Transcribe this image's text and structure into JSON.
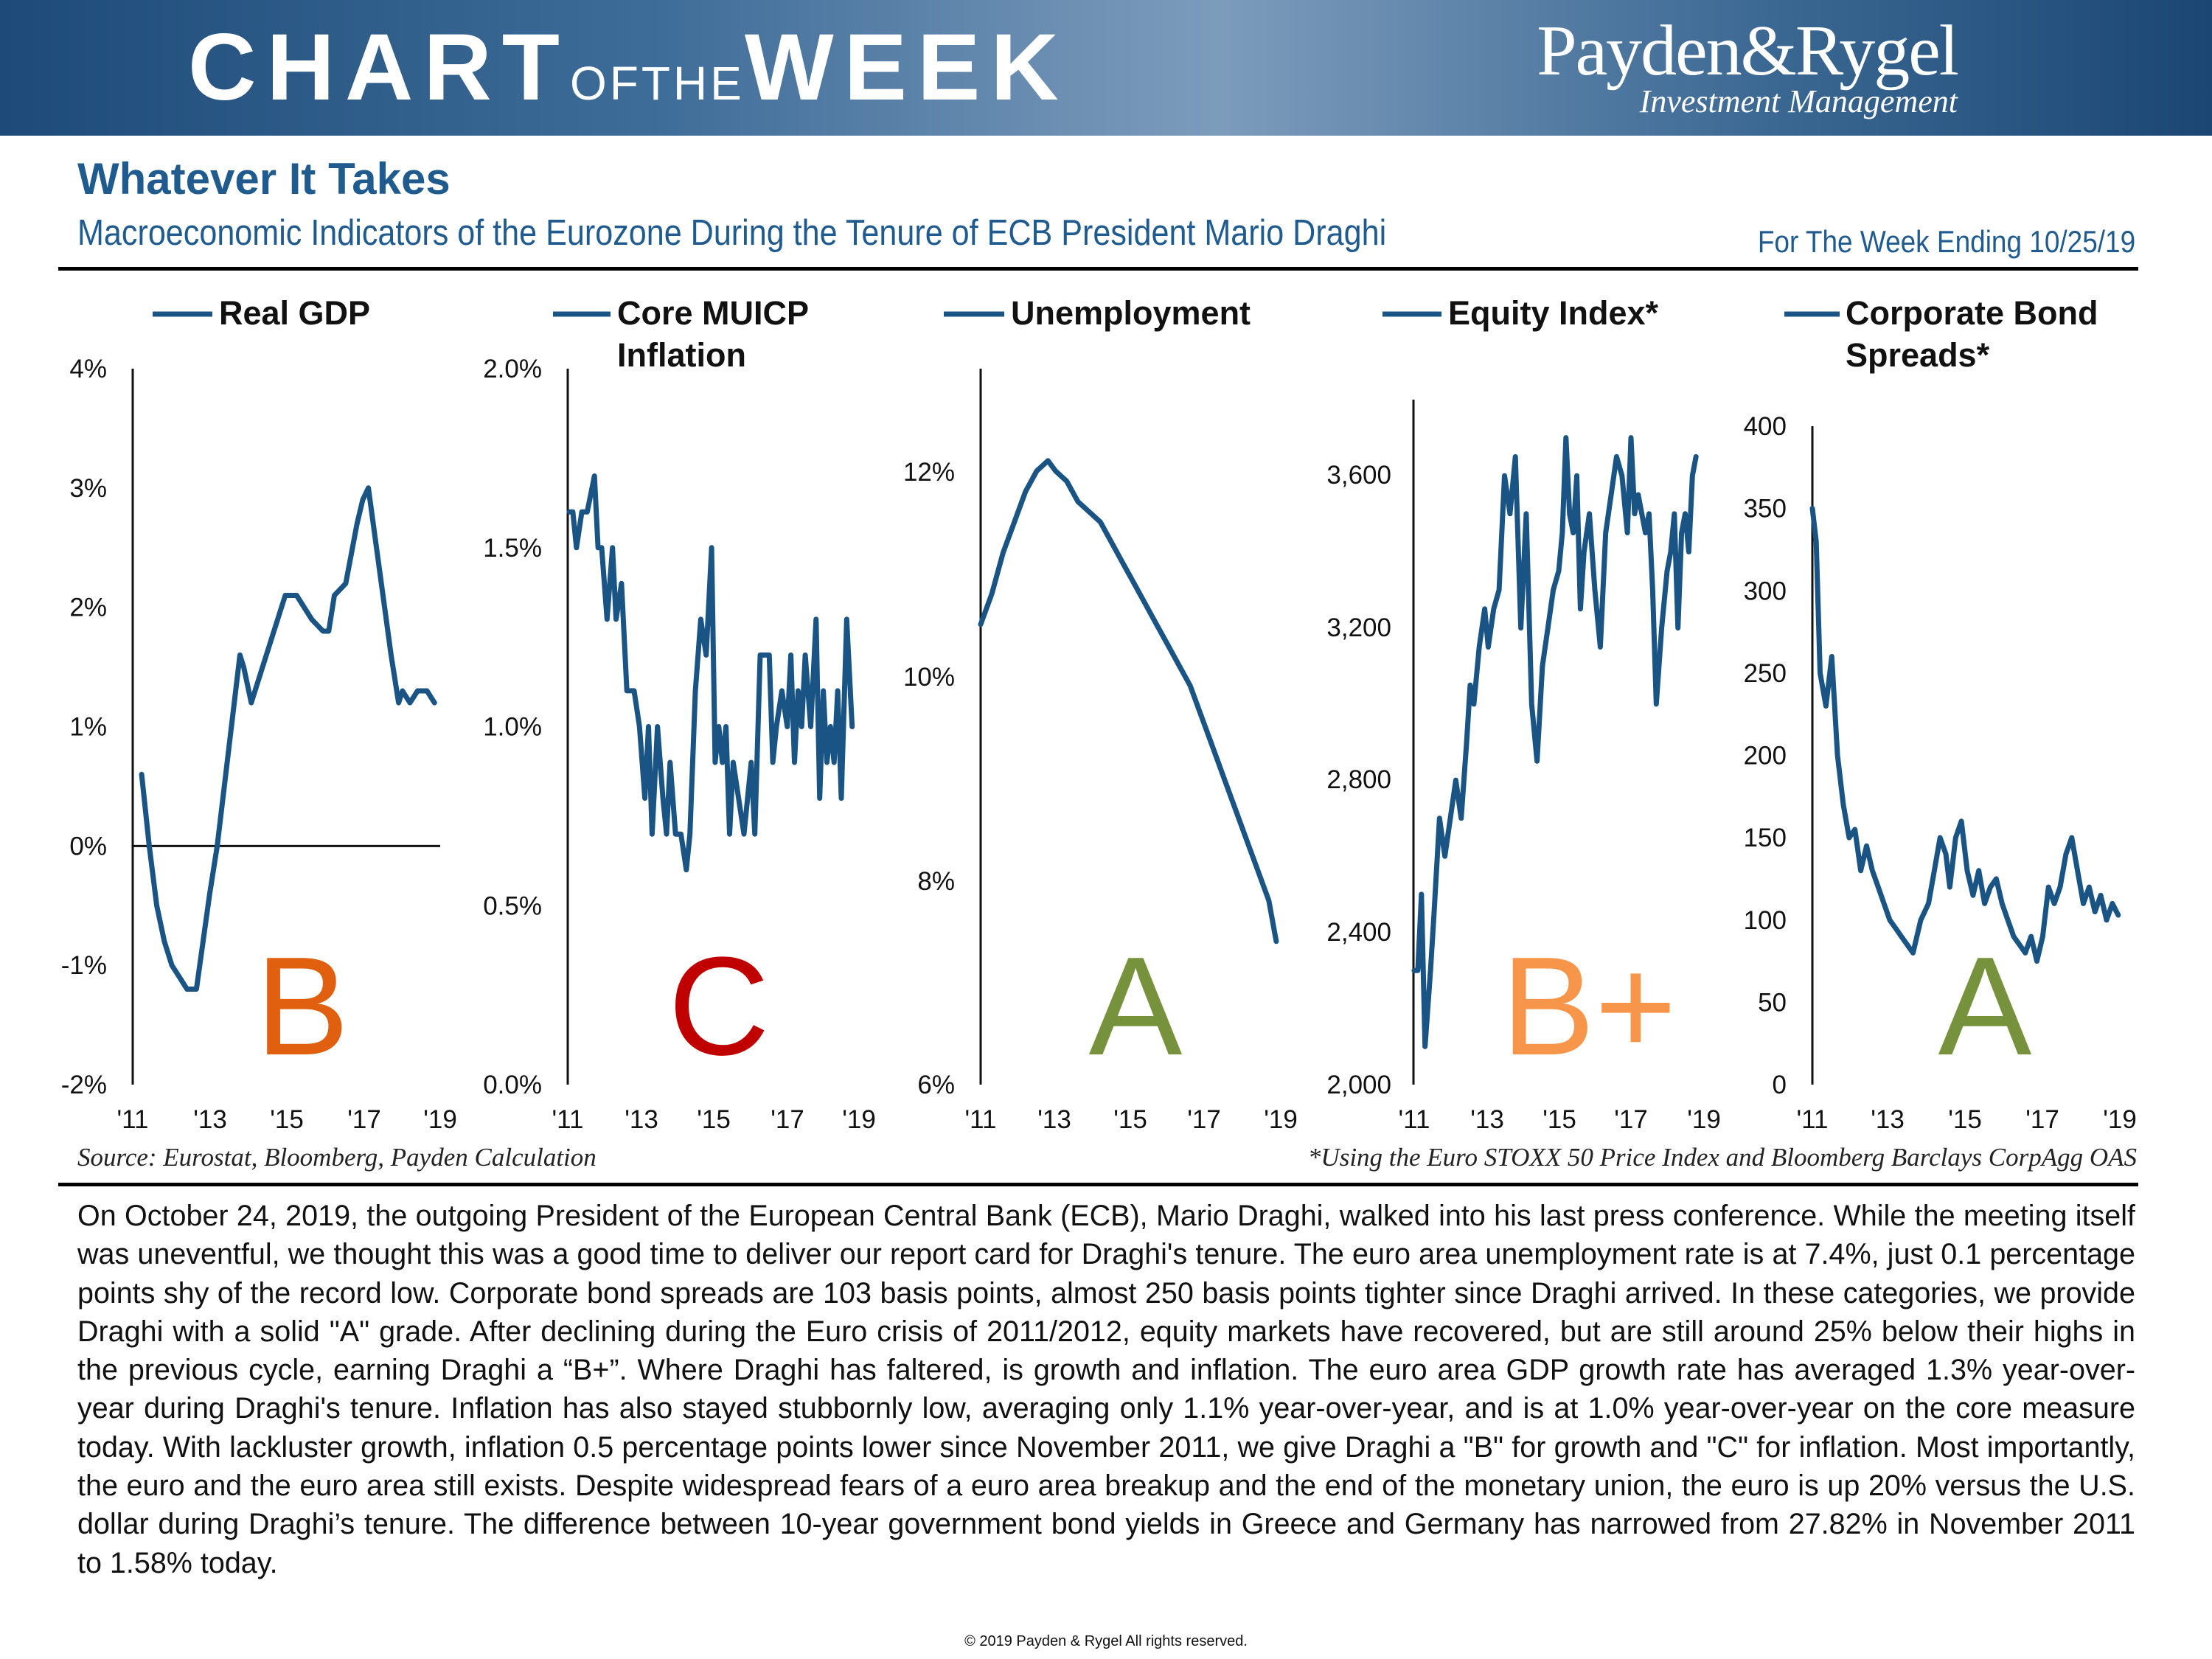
{
  "header": {
    "chart": "CHART",
    "of_the": "OFTHE",
    "week": "WEEK",
    "logo_name": "Payden&Rygel",
    "logo_tagline": "Investment Management"
  },
  "title": "Whatever It Takes",
  "subtitle": "Macroeconomic Indicators of the Eurozone During the Tenure of ECB President Mario Draghi",
  "week_ending": "For The Week Ending 10/25/19",
  "colors": {
    "line": "#1a5485",
    "brand": "#1f5b8f",
    "grade_B": "#e06010",
    "grade_C": "#c00000",
    "grade_A": "#76923c",
    "grade_Bplus": "#f7964a"
  },
  "chart_data": [
    {
      "type": "line",
      "legend": [
        "Real GDP"
      ],
      "grade": "B",
      "ylim": [
        -2,
        4
      ],
      "yticks": [
        "4%",
        "3%",
        "2%",
        "1%",
        "0%",
        "-1%",
        "-2%"
      ],
      "xticks": [
        "'11",
        "'13",
        "'15",
        "'17",
        "'19"
      ],
      "xlim": [
        2011,
        2019
      ],
      "zero_line": true,
      "x": [
        2011.1,
        2011.3,
        2011.5,
        2011.7,
        2011.9,
        2012.1,
        2012.3,
        2012.55,
        2012.9,
        2013.1,
        2013.4,
        2013.7,
        2013.8,
        2014.0,
        2014.3,
        2014.6,
        2014.9,
        2015.0,
        2015.2,
        2015.6,
        2015.9,
        2016.05,
        2016.2,
        2016.5,
        2016.8,
        2016.95,
        2017.1,
        2017.4,
        2017.7,
        2017.9,
        2018.0,
        2018.2,
        2018.4,
        2018.65,
        2018.85
      ],
      "y": [
        0.6,
        0.0,
        -0.5,
        -0.8,
        -1.0,
        -1.1,
        -1.2,
        -1.2,
        -0.4,
        0.0,
        0.8,
        1.6,
        1.5,
        1.2,
        1.5,
        1.8,
        2.1,
        2.1,
        2.1,
        1.9,
        1.8,
        1.8,
        2.1,
        2.2,
        2.7,
        2.9,
        3.0,
        2.3,
        1.6,
        1.2,
        1.3,
        1.2,
        1.3,
        1.3,
        1.2
      ]
    },
    {
      "type": "line",
      "legend": [
        "Core MUICP",
        "Inflation"
      ],
      "grade": "C",
      "ylim": [
        0,
        2
      ],
      "yticks": [
        "2.0%",
        "1.5%",
        "1.0%",
        "0.5%",
        "0.0%"
      ],
      "xticks": [
        "'11",
        "'13",
        "'15",
        "'17",
        "'19"
      ],
      "xlim": [
        2011,
        2019
      ],
      "x": [
        2011.0,
        2011.1,
        2011.2,
        2011.35,
        2011.5,
        2011.7,
        2011.8,
        2011.9,
        2012.05,
        2012.2,
        2012.3,
        2012.45,
        2012.6,
        2012.8,
        2012.95,
        2013.1,
        2013.2,
        2013.3,
        2013.45,
        2013.6,
        2013.7,
        2013.8,
        2013.95,
        2014.1,
        2014.25,
        2014.35,
        2014.5,
        2014.65,
        2014.8,
        2014.95,
        2015.05,
        2015.15,
        2015.25,
        2015.35,
        2015.45,
        2015.55,
        2015.7,
        2015.85,
        2015.95,
        2016.05,
        2016.15,
        2016.3,
        2016.45,
        2016.55,
        2016.65,
        2016.75,
        2016.9,
        2017.05,
        2017.15,
        2017.25,
        2017.35,
        2017.45,
        2017.55,
        2017.7,
        2017.85,
        2017.95,
        2018.05,
        2018.15,
        2018.25,
        2018.35,
        2018.45,
        2018.55,
        2018.7,
        2018.85
      ],
      "y": [
        1.6,
        1.6,
        1.5,
        1.6,
        1.6,
        1.7,
        1.5,
        1.5,
        1.3,
        1.5,
        1.3,
        1.4,
        1.1,
        1.1,
        1.0,
        0.8,
        1.0,
        0.7,
        1.0,
        0.8,
        0.7,
        0.9,
        0.7,
        0.7,
        0.6,
        0.7,
        1.1,
        1.3,
        1.2,
        1.5,
        0.9,
        1.0,
        0.9,
        1.0,
        0.7,
        0.9,
        0.8,
        0.7,
        0.8,
        0.9,
        0.7,
        1.2,
        1.2,
        1.2,
        0.9,
        1.0,
        1.1,
        1.0,
        1.2,
        0.9,
        1.1,
        1.0,
        1.2,
        1.0,
        1.3,
        0.8,
        1.1,
        0.9,
        1.0,
        0.9,
        1.1,
        0.8,
        1.3,
        1.0
      ]
    },
    {
      "type": "line",
      "legend": [
        "Unemployment"
      ],
      "grade": "A",
      "ylim": [
        6,
        13
      ],
      "yticks": [
        "12%",
        "10%",
        "8%",
        "6%"
      ],
      "xticks": [
        "'11",
        "'13",
        "'15",
        "'17",
        "'19"
      ],
      "xlim": [
        2011,
        2019
      ],
      "x": [
        2011.0,
        2011.3,
        2011.6,
        2011.9,
        2012.2,
        2012.5,
        2012.8,
        2013.0,
        2013.3,
        2013.6,
        2013.9,
        2014.2,
        2014.5,
        2014.8,
        2015.1,
        2015.4,
        2015.7,
        2016.0,
        2016.3,
        2016.6,
        2016.9,
        2017.2,
        2017.5,
        2017.8,
        2018.1,
        2018.4,
        2018.7,
        2018.9
      ],
      "y": [
        10.5,
        10.8,
        11.2,
        11.5,
        11.8,
        12.0,
        12.1,
        12.0,
        11.9,
        11.7,
        11.6,
        11.5,
        11.3,
        11.1,
        10.9,
        10.7,
        10.5,
        10.3,
        10.1,
        9.9,
        9.6,
        9.3,
        9.0,
        8.7,
        8.4,
        8.1,
        7.8,
        7.4
      ]
    },
    {
      "type": "line",
      "legend": [
        "Equity Index*"
      ],
      "grade": "B+",
      "ylim": [
        2000,
        3800
      ],
      "yticks": [
        "3,600",
        "3,200",
        "2,800",
        "2,400",
        "2,000"
      ],
      "ytick_values": [
        3600,
        3200,
        2800,
        2400,
        2000
      ],
      "xticks": [
        "'11",
        "'13",
        "'15",
        "'17",
        "'19"
      ],
      "xlim": [
        2011,
        2019
      ],
      "x": [
        2011.0,
        2011.1,
        2011.2,
        2011.3,
        2011.45,
        2011.55,
        2011.7,
        2011.85,
        2012.0,
        2012.15,
        2012.3,
        2012.45,
        2012.55,
        2012.65,
        2012.8,
        2012.95,
        2013.05,
        2013.2,
        2013.35,
        2013.5,
        2013.65,
        2013.8,
        2013.95,
        2014.1,
        2014.25,
        2014.4,
        2014.55,
        2014.7,
        2014.85,
        2015.0,
        2015.1,
        2015.2,
        2015.3,
        2015.4,
        2015.5,
        2015.6,
        2015.7,
        2015.85,
        2016.0,
        2016.15,
        2016.3,
        2016.45,
        2016.6,
        2016.75,
        2016.9,
        2017.0,
        2017.1,
        2017.2,
        2017.3,
        2017.4,
        2017.5,
        2017.6,
        2017.7,
        2017.85,
        2018.0,
        2018.1,
        2018.2,
        2018.3,
        2018.4,
        2018.5,
        2018.6,
        2018.7,
        2018.8
      ],
      "y": [
        2300,
        2300,
        2500,
        2100,
        2300,
        2450,
        2700,
        2600,
        2700,
        2800,
        2700,
        2900,
        3050,
        3000,
        3150,
        3250,
        3150,
        3250,
        3300,
        3600,
        3500,
        3650,
        3200,
        3500,
        3000,
        2850,
        3100,
        3200,
        3300,
        3350,
        3450,
        3700,
        3500,
        3450,
        3600,
        3250,
        3400,
        3500,
        3300,
        3150,
        3450,
        3550,
        3650,
        3600,
        3450,
        3700,
        3500,
        3550,
        3500,
        3450,
        3500,
        3300,
        3000,
        3200,
        3350,
        3400,
        3500,
        3200,
        3450,
        3500,
        3400,
        3600,
        3650
      ]
    },
    {
      "type": "line",
      "legend": [
        "Corporate Bond",
        "Spreads*"
      ],
      "grade": "A",
      "ylim": [
        0,
        400
      ],
      "yticks": [
        "400",
        "350",
        "300",
        "250",
        "200",
        "150",
        "100",
        "50",
        "0"
      ],
      "ytick_values": [
        400,
        350,
        300,
        250,
        200,
        150,
        100,
        50,
        0
      ],
      "xticks": [
        "'11",
        "'13",
        "'15",
        "'17",
        "'19"
      ],
      "xlim": [
        2011,
        2019
      ],
      "x": [
        2011.0,
        2011.1,
        2011.2,
        2011.35,
        2011.5,
        2011.65,
        2011.8,
        2011.95,
        2012.1,
        2012.25,
        2012.4,
        2012.55,
        2012.7,
        2012.85,
        2013.0,
        2013.15,
        2013.3,
        2013.45,
        2013.6,
        2013.8,
        2014.0,
        2014.15,
        2014.3,
        2014.45,
        2014.55,
        2014.7,
        2014.85,
        2015.0,
        2015.15,
        2015.3,
        2015.45,
        2015.6,
        2015.75,
        2015.9,
        2016.05,
        2016.2,
        2016.35,
        2016.5,
        2016.65,
        2016.8,
        2016.95,
        2017.1,
        2017.25,
        2017.4,
        2017.55,
        2017.7,
        2017.85,
        2018.0,
        2018.15,
        2018.3,
        2018.45,
        2018.6,
        2018.75,
        2018.9
      ],
      "y": [
        350,
        330,
        250,
        230,
        260,
        200,
        170,
        150,
        155,
        130,
        145,
        130,
        120,
        110,
        100,
        95,
        90,
        85,
        80,
        100,
        110,
        130,
        150,
        140,
        120,
        150,
        160,
        130,
        115,
        130,
        110,
        120,
        125,
        110,
        100,
        90,
        85,
        80,
        90,
        75,
        90,
        120,
        110,
        120,
        140,
        150,
        130,
        110,
        120,
        105,
        115,
        100,
        110,
        103
      ]
    }
  ],
  "source": "Source: Eurostat, Bloomberg, Payden Calculation",
  "footnote": "*Using the Euro STOXX 50 Price Index and Bloomberg Barclays CorpAgg OAS",
  "body": "On October 24, 2019, the outgoing President of the European Central Bank (ECB), Mario Draghi, walked into his last press conference. While the meeting itself was uneventful, we thought this was a good time to deliver our report card for Draghi's tenure. The euro area unemployment rate is at 7.4%, just 0.1 percentage points shy of the record low. Corporate bond spreads are 103 basis points, almost 250 basis points tighter since Draghi arrived. In these categories, we provide Draghi with a solid \"A\" grade. After declining during the Euro crisis of 2011/2012, equity markets have recovered, but are still around 25% below their highs in the previous cycle, earning Draghi a “B+”. Where Draghi has faltered, is growth and inflation. The euro area GDP growth rate has averaged 1.3% year-over-year during Draghi's tenure. Inflation has also stayed stubbornly low, averaging only 1.1% year-over-year, and is at 1.0% year-over-year on the core measure today. With lackluster growth, inflation 0.5 percentage points lower since November 2011, we give Draghi a \"B\" for growth and \"C\" for inflation. Most importantly, the euro and the euro area still exists. Despite widespread fears of a euro area breakup and the end of the monetary union, the euro is up 20% versus the U.S. dollar during Draghi’s tenure. The difference between 10-year government bond yields in Greece and Germany has narrowed from 27.82% in November 2011 to 1.58% today.",
  "copyright": "© 2019 Payden & Rygel All rights reserved."
}
